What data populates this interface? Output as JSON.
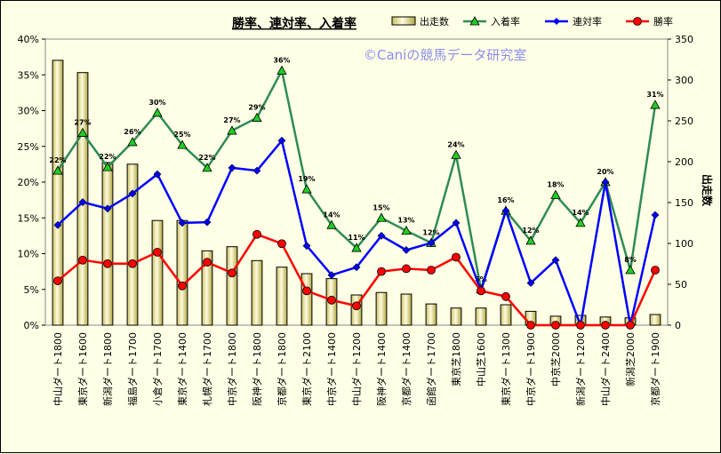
{
  "chart_data": {
    "type": "bar+line",
    "title": "勝率、連対率、入着率",
    "watermark": "©Caniの競馬データ研究室",
    "y_left_label": "",
    "y_right_label": "出走数",
    "y_left_ticks": [
      "0%",
      "5%",
      "10%",
      "15%",
      "20%",
      "25%",
      "30%",
      "35%",
      "40%"
    ],
    "y_right_ticks": [
      "0",
      "50",
      "100",
      "150",
      "200",
      "250",
      "300",
      "350"
    ],
    "ylim_left": [
      0,
      40
    ],
    "ylim_right": [
      0,
      350
    ],
    "categories": [
      "中山ダート1800",
      "東京ダート1600",
      "新潟ダート1800",
      "福島ダート1700",
      "小倉ダート1700",
      "東京ダート1400",
      "札幌ダート1700",
      "中京ダート1800",
      "阪神ダート1800",
      "京都ダート1800",
      "東京ダート2100",
      "中京ダート1400",
      "中山ダート1200",
      "阪神ダート1400",
      "京都ダート1400",
      "函館ダート1700",
      "東京芝1800",
      "中山芝1600",
      "東京ダート1300",
      "中京ダート1900",
      "中京芝2000",
      "新潟ダート1200",
      "中山ダート2400",
      "新潟芝2000",
      "京都ダート1900"
    ],
    "series": [
      {
        "name": "出走数",
        "type": "bar",
        "axis": "right",
        "color": "#e8e08a",
        "values": [
          324,
          309,
          199,
          197,
          128,
          128,
          91,
          96,
          79,
          71,
          63,
          57,
          37,
          40,
          38,
          26,
          21,
          21,
          25,
          17,
          11,
          12,
          10,
          9,
          13
        ]
      },
      {
        "name": "入着率",
        "type": "line",
        "axis": "left",
        "color": "#2e8b57",
        "values": [
          21.6,
          26.9,
          22.1,
          25.6,
          29.7,
          25.2,
          22.0,
          27.2,
          29.0,
          35.6,
          19.0,
          14.0,
          10.8,
          15.0,
          13.2,
          11.5,
          23.8,
          5.0,
          16.0,
          11.8,
          18.2,
          14.3,
          20.0,
          7.7,
          30.8
        ],
        "labels": [
          "22%",
          "27%",
          "22%",
          "26%",
          "30%",
          "25%",
          "22%",
          "27%",
          "29%",
          "36%",
          "19%",
          "14%",
          "11%",
          "15%",
          "13%",
          "12%",
          "24%",
          "5%",
          "16%",
          "12%",
          "18%",
          "14%",
          "20%",
          "8%",
          "31%"
        ]
      },
      {
        "name": "連対率",
        "type": "line",
        "axis": "left",
        "color": "#0000ff",
        "values": [
          14.0,
          17.2,
          16.3,
          18.4,
          21.1,
          14.3,
          14.4,
          22.0,
          21.6,
          25.8,
          11.1,
          7.0,
          8.1,
          12.5,
          10.5,
          11.5,
          14.3,
          4.8,
          16.0,
          5.9,
          9.1,
          0.0,
          20.0,
          0.0,
          15.4
        ]
      },
      {
        "name": "勝率",
        "type": "line",
        "axis": "left",
        "color": "#ff0000",
        "values": [
          6.2,
          9.1,
          8.6,
          8.6,
          10.2,
          5.5,
          8.8,
          7.3,
          12.7,
          11.4,
          4.8,
          3.5,
          2.7,
          7.5,
          7.9,
          7.7,
          9.5,
          4.8,
          4.0,
          0.0,
          0.0,
          0.0,
          0.0,
          0.0,
          7.7
        ]
      }
    ],
    "legend_position": "top-right",
    "grid": false
  }
}
